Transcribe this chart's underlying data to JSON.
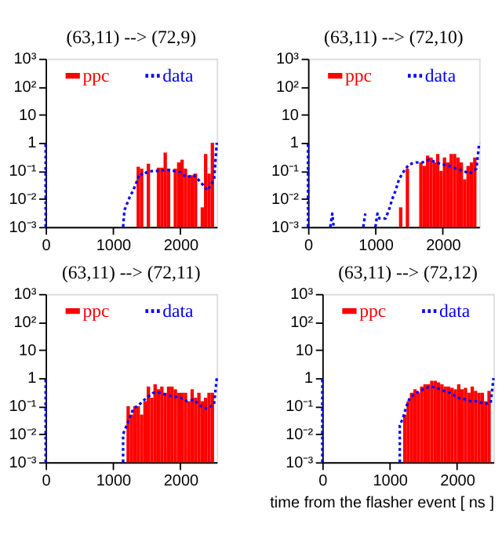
{
  "chart_data": [
    {
      "type": "histogram",
      "title": "(63,11) --> (72,9)",
      "xlim": [
        0,
        2540
      ],
      "xticks": [
        0,
        1000,
        2000
      ],
      "ylim": [
        0.001,
        1000
      ],
      "log": "y",
      "legend": "top",
      "grid": false,
      "yticks": [
        {
          "value": 0.001,
          "label": "10⁻³"
        },
        {
          "value": 0.01,
          "label": "10⁻²"
        },
        {
          "value": 0.1,
          "label": "10⁻¹"
        },
        1,
        10,
        {
          "value": 100,
          "label": "10²"
        },
        {
          "value": 1000,
          "label": "10³"
        }
      ],
      "series": [
        {
          "name": "ppc",
          "color": "#ff0000",
          "bins": [
            1100,
            1150,
            1200,
            1250,
            1300,
            1350,
            1400,
            1450,
            1500,
            1550,
            1600,
            1650,
            1700,
            1750,
            1800,
            1850,
            1900,
            1950,
            2000,
            2050,
            2100,
            2150,
            2200,
            2250,
            2300,
            2350,
            2400,
            2450,
            2500
          ],
          "values": [
            null,
            null,
            null,
            null,
            null,
            0.14,
            0.12,
            null,
            0.18,
            null,
            null,
            0.13,
            0.13,
            0.45,
            0.12,
            null,
            0.12,
            0.2,
            0.25,
            0.12,
            0.07,
            0.07,
            0.08,
            null,
            0.005,
            0.4,
            0.08,
            1.0
          ]
        },
        {
          "name": "data",
          "type": "line",
          "line_style": "dotted",
          "color": "#0000ff",
          "x": [
            0,
            0,
            null,
            1150,
            1170,
            1200,
            1250,
            1300,
            1350,
            1400,
            1450,
            1500,
            1600,
            1700,
            1800,
            1900,
            2000,
            2050,
            2100,
            2200,
            2300,
            2400,
            2450,
            2500,
            2540
          ],
          "values": [
            0.001,
            1,
            null,
            0.001,
            0.004,
            0.006,
            0.012,
            0.02,
            0.04,
            0.08,
            0.07,
            0.09,
            0.1,
            0.1,
            0.11,
            0.1,
            0.09,
            0.07,
            0.06,
            0.07,
            0.04,
            0.02,
            0.03,
            0.05,
            1
          ]
        }
      ]
    },
    {
      "type": "histogram",
      "title": "(63,11) --> (72,10)",
      "xlim": [
        0,
        2540
      ],
      "xticks": [
        0,
        1000,
        2000
      ],
      "ylim": [
        0.001,
        1000
      ],
      "log": "y",
      "legend": "top",
      "grid": false,
      "yticks": [
        {
          "value": 0.001,
          "label": "10⁻³"
        },
        {
          "value": 0.01,
          "label": "10⁻²"
        },
        {
          "value": 0.1,
          "label": "10⁻¹"
        },
        1,
        10,
        {
          "value": 100,
          "label": "10²"
        },
        {
          "value": 1000,
          "label": "10³"
        }
      ],
      "series": [
        {
          "name": "ppc",
          "color": "#ff0000",
          "bins": [
            1100,
            1150,
            1200,
            1250,
            1300,
            1350,
            1400,
            1450,
            1500,
            1550,
            1600,
            1650,
            1700,
            1750,
            1800,
            1850,
            1900,
            1950,
            2000,
            2050,
            2100,
            2150,
            2200,
            2250,
            2300,
            2350,
            2400,
            2450,
            2500
          ],
          "values": [
            null,
            null,
            null,
            null,
            null,
            0.005,
            null,
            0.12,
            null,
            null,
            null,
            0.2,
            0.15,
            0.35,
            0.3,
            0.2,
            0.4,
            0.1,
            0.3,
            0.2,
            0.4,
            0.4,
            0.3,
            0.2,
            0.05,
            0.15,
            0.2,
            0.3
          ]
        },
        {
          "name": "data",
          "type": "line",
          "line_style": "dotted",
          "color": "#0000ff",
          "x": [
            0,
            0,
            null,
            330,
            360,
            380,
            null,
            820,
            850,
            null,
            1000,
            1030,
            1060,
            1150,
            1200,
            1250,
            1300,
            1350,
            1400,
            1450,
            1500,
            1600,
            1700,
            1800,
            1900,
            2000,
            2100,
            2200,
            2300,
            2400,
            2450,
            2500,
            2540
          ],
          "values": [
            0.001,
            1,
            null,
            0.001,
            0.003,
            0.001,
            null,
            0.001,
            0.003,
            null,
            0.001,
            0.003,
            0.002,
            0.002,
            0.004,
            0.01,
            0.02,
            0.05,
            0.08,
            0.12,
            0.17,
            0.2,
            0.2,
            0.25,
            0.2,
            0.17,
            0.15,
            0.12,
            0.1,
            0.08,
            0.1,
            0.12,
            1
          ]
        }
      ]
    },
    {
      "type": "histogram",
      "title": "(63,11) --> (72,11)",
      "xlim": [
        0,
        2540
      ],
      "xticks": [
        0,
        1000,
        2000
      ],
      "ylim": [
        0.001,
        1000
      ],
      "log": "y",
      "legend": "top",
      "grid": false,
      "yticks": [
        {
          "value": 0.001,
          "label": "10⁻³"
        },
        {
          "value": 0.01,
          "label": "10⁻²"
        },
        {
          "value": 0.1,
          "label": "10⁻¹"
        },
        1,
        10,
        {
          "value": 100,
          "label": "10²"
        },
        {
          "value": 1000,
          "label": "10³"
        }
      ],
      "series": [
        {
          "name": "ppc",
          "color": "#ff0000",
          "bins": [
            1100,
            1150,
            1200,
            1250,
            1300,
            1350,
            1400,
            1450,
            1500,
            1550,
            1600,
            1650,
            1700,
            1750,
            1800,
            1850,
            1900,
            1950,
            2000,
            2050,
            2100,
            2150,
            2200,
            2250,
            2300,
            2350,
            2400,
            2450,
            2500
          ],
          "values": [
            null,
            null,
            0.1,
            0.05,
            0.1,
            0.1,
            0.05,
            0.15,
            0.5,
            0.2,
            0.6,
            0.4,
            0.5,
            0.3,
            0.5,
            0.5,
            0.4,
            0.3,
            0.3,
            0.3,
            0.15,
            0.4,
            0.2,
            0.3,
            0.15,
            0.2,
            0.3,
            0.3
          ]
        },
        {
          "name": "data",
          "type": "line",
          "line_style": "dotted",
          "color": "#0000ff",
          "x": [
            0,
            0,
            null,
            1150,
            1150,
            1200,
            1250,
            1300,
            1400,
            1500,
            1600,
            1700,
            1800,
            1900,
            2000,
            2100,
            2200,
            2300,
            2400,
            2500,
            2540
          ],
          "values": [
            0.001,
            1,
            null,
            0.001,
            0.01,
            0.02,
            0.04,
            0.08,
            0.12,
            0.2,
            0.3,
            0.3,
            0.25,
            0.22,
            0.2,
            0.15,
            0.17,
            0.1,
            0.08,
            0.12,
            1
          ]
        }
      ]
    },
    {
      "type": "histogram",
      "title": "(63,11) --> (72,12)",
      "xlabel": "time from the flasher event [ ns ]",
      "xlim": [
        0,
        2540
      ],
      "xticks": [
        0,
        1000,
        2000
      ],
      "ylim": [
        0.001,
        1000
      ],
      "log": "y",
      "legend": "top",
      "grid": false,
      "yticks": [
        {
          "value": 0.001,
          "label": "10⁻³"
        },
        {
          "value": 0.01,
          "label": "10⁻²"
        },
        {
          "value": 0.1,
          "label": "10⁻¹"
        },
        1,
        10,
        {
          "value": 100,
          "label": "10²"
        },
        {
          "value": 1000,
          "label": "10³"
        }
      ],
      "series": [
        {
          "name": "ppc",
          "color": "#ff0000",
          "bins": [
            1100,
            1150,
            1200,
            1250,
            1300,
            1350,
            1400,
            1450,
            1500,
            1550,
            1600,
            1650,
            1700,
            1750,
            1800,
            1850,
            1900,
            1950,
            2000,
            2050,
            2100,
            2150,
            2200,
            2250,
            2300,
            2350,
            2400,
            2450,
            2500
          ],
          "values": [
            null,
            null,
            0.05,
            0.15,
            0.3,
            0.4,
            0.3,
            0.5,
            0.6,
            0.6,
            0.8,
            0.8,
            0.7,
            0.6,
            0.5,
            0.5,
            0.45,
            0.4,
            0.6,
            0.4,
            0.45,
            0.3,
            0.5,
            0.35,
            0.3,
            0.3,
            0.15,
            0.35
          ]
        },
        {
          "name": "data",
          "type": "line",
          "line_style": "dotted",
          "color": "#0000ff",
          "x": [
            0,
            0,
            null,
            1150,
            1150,
            1200,
            1250,
            1300,
            1400,
            1500,
            1600,
            1700,
            1800,
            1900,
            2000,
            2100,
            2200,
            2300,
            2400,
            2500,
            2540
          ],
          "values": [
            0.001,
            1,
            null,
            0.001,
            0.02,
            0.04,
            0.1,
            0.2,
            0.3,
            0.4,
            0.5,
            0.45,
            0.35,
            0.3,
            0.2,
            0.18,
            0.15,
            0.15,
            0.12,
            0.13,
            1
          ]
        }
      ]
    }
  ]
}
